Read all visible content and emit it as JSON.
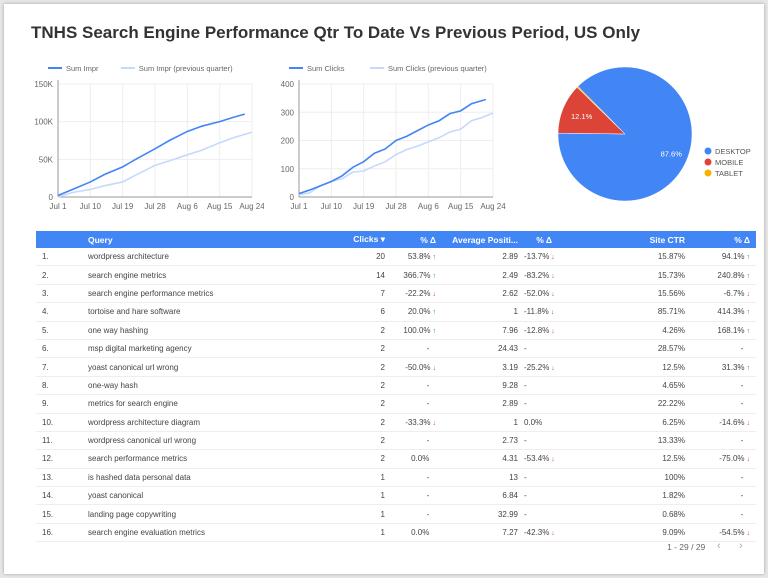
{
  "title": "TNHS Search Engine Performance Qtr To Date Vs Previous Period, US Only",
  "colors": {
    "primary": "#4285f4",
    "previous": "#c6d9fc",
    "desktop": "#4285f4",
    "mobile": "#db4437",
    "tablet": "#f4b400",
    "up": "#0f9d58",
    "down": "#db4437"
  },
  "chart_data": [
    {
      "type": "line",
      "x_ticks": [
        "Jul 1",
        "Jul 10",
        "Jul 19",
        "Jul 28",
        "Aug 6",
        "Aug 15",
        "Aug 24"
      ],
      "y_ticks": [
        "0",
        "50K",
        "100K",
        "150K"
      ],
      "ylim": [
        0,
        150000
      ],
      "grid": true,
      "legend": "top-left",
      "series": [
        {
          "name": "Sum Impr",
          "x": [
            "Jul 1",
            "Jul 5",
            "Jul 10",
            "Jul 14",
            "Jul 19",
            "Jul 23",
            "Jul 28",
            "Aug 1",
            "Aug 6",
            "Aug 10",
            "Aug 15",
            "Aug 19",
            "Aug 22"
          ],
          "values": [
            2000,
            10000,
            20000,
            30000,
            40000,
            51000,
            64000,
            75000,
            87000,
            94000,
            100000,
            106000,
            110000
          ]
        },
        {
          "name": "Sum Impr (previous quarter)",
          "x": [
            "Jul 1",
            "Jul 5",
            "Jul 10",
            "Jul 14",
            "Jul 19",
            "Jul 23",
            "Jul 28",
            "Aug 1",
            "Aug 6",
            "Aug 10",
            "Aug 15",
            "Aug 19",
            "Aug 24"
          ],
          "values": [
            0,
            6000,
            10000,
            15000,
            20000,
            30000,
            42000,
            48000,
            56000,
            62000,
            72000,
            79000,
            86000
          ]
        }
      ]
    },
    {
      "type": "line",
      "x_ticks": [
        "Jul 1",
        "Jul 10",
        "Jul 19",
        "Jul 28",
        "Aug 6",
        "Aug 15",
        "Aug 24"
      ],
      "y_ticks": [
        "0",
        "100",
        "200",
        "300",
        "400"
      ],
      "ylim": [
        0,
        400
      ],
      "grid": true,
      "legend": "top-left",
      "series": [
        {
          "name": "Sum Clicks",
          "x": [
            "Jul 1",
            "Jul 4",
            "Jul 7",
            "Jul 10",
            "Jul 13",
            "Jul 16",
            "Jul 19",
            "Jul 22",
            "Jul 25",
            "Jul 28",
            "Jul 31",
            "Aug 3",
            "Aug 6",
            "Aug 9",
            "Aug 12",
            "Aug 15",
            "Aug 18",
            "Aug 22"
          ],
          "values": [
            12,
            25,
            40,
            55,
            75,
            105,
            125,
            155,
            170,
            200,
            215,
            235,
            255,
            270,
            295,
            305,
            330,
            345
          ]
        },
        {
          "name": "Sum Clicks (previous quarter)",
          "x": [
            "Jul 1",
            "Jul 4",
            "Jul 7",
            "Jul 10",
            "Jul 13",
            "Jul 16",
            "Jul 19",
            "Jul 22",
            "Jul 25",
            "Jul 28",
            "Jul 31",
            "Aug 3",
            "Aug 6",
            "Aug 9",
            "Aug 12",
            "Aug 15",
            "Aug 18",
            "Aug 21",
            "Aug 24"
          ],
          "values": [
            8,
            15,
            40,
            55,
            65,
            88,
            92,
            110,
            125,
            150,
            168,
            180,
            195,
            210,
            230,
            240,
            270,
            282,
            297
          ]
        }
      ]
    },
    {
      "type": "pie",
      "legend": "right",
      "slices": [
        {
          "name": "DESKTOP",
          "value": 87.6,
          "label": "87.6%"
        },
        {
          "name": "MOBILE",
          "value": 12.1,
          "label": "12.1%"
        },
        {
          "name": "TABLET",
          "value": 0.3,
          "label": ""
        }
      ]
    }
  ],
  "table": {
    "headers": [
      "",
      "Query",
      "Clicks",
      "% Δ",
      "Average Positi...",
      "% Δ",
      "Site CTR",
      "% Δ"
    ],
    "sort_icon": "▾",
    "rows": [
      [
        "1.",
        "wordpress architecture",
        "20",
        "53.8%",
        "up",
        "2.89",
        "-13.7%",
        "dn",
        "15.87%",
        "94.1%",
        "up"
      ],
      [
        "2.",
        "search engine metrics",
        "14",
        "366.7%",
        "up",
        "2.49",
        "-83.2%",
        "dn",
        "15.73%",
        "240.8%",
        "up"
      ],
      [
        "3.",
        "search engine performance metrics",
        "7",
        "-22.2%",
        "dn",
        "2.62",
        "-52.0%",
        "dn",
        "15.56%",
        "-6.7%",
        "dn"
      ],
      [
        "4.",
        "tortoise and hare software",
        "6",
        "20.0%",
        "up",
        "1",
        "-11.8%",
        "dn",
        "85.71%",
        "414.3%",
        "up"
      ],
      [
        "5.",
        "one way hashing",
        "2",
        "100.0%",
        "up",
        "7.96",
        "-12.8%",
        "dn",
        "4.26%",
        "168.1%",
        "up"
      ],
      [
        "6.",
        "msp digital marketing agency",
        "2",
        "-",
        "",
        "24.43",
        "-",
        "",
        "28.57%",
        "-",
        ""
      ],
      [
        "7.",
        "yoast canonical url wrong",
        "2",
        "-50.0%",
        "dn",
        "3.19",
        "-25.2%",
        "dn",
        "12.5%",
        "31.3%",
        "up"
      ],
      [
        "8.",
        "one-way hash",
        "2",
        "-",
        "",
        "9.28",
        "-",
        "",
        "4.65%",
        "-",
        ""
      ],
      [
        "9.",
        "metrics for search engine",
        "2",
        "-",
        "",
        "2.89",
        "-",
        "",
        "22.22%",
        "-",
        ""
      ],
      [
        "10.",
        "wordpress architecture diagram",
        "2",
        "-33.3%",
        "dn",
        "1",
        "0.0%",
        "",
        "6.25%",
        "-14.6%",
        "dn"
      ],
      [
        "11.",
        "wordpress canonical url wrong",
        "2",
        "-",
        "",
        "2.73",
        "-",
        "",
        "13.33%",
        "-",
        ""
      ],
      [
        "12.",
        "search performance metrics",
        "2",
        "0.0%",
        "",
        "4.31",
        "-53.4%",
        "dn",
        "12.5%",
        "-75.0%",
        "dn"
      ],
      [
        "13.",
        "is hashed data personal data",
        "1",
        "-",
        "",
        "13",
        "-",
        "",
        "100%",
        "-",
        ""
      ],
      [
        "14.",
        "yoast canonical",
        "1",
        "-",
        "",
        "6.84",
        "-",
        "",
        "1.82%",
        "-",
        ""
      ],
      [
        "15.",
        "landing page copywriting",
        "1",
        "-",
        "",
        "32.99",
        "-",
        "",
        "0.68%",
        "-",
        ""
      ],
      [
        "16.",
        "search engine evaluation metrics",
        "1",
        "0.0%",
        "",
        "7.27",
        "-42.3%",
        "dn",
        "9.09%",
        "-54.5%",
        "dn"
      ]
    ]
  },
  "pager": {
    "label": "1 - 29 / 29",
    "prev": "‹",
    "next": "›"
  }
}
